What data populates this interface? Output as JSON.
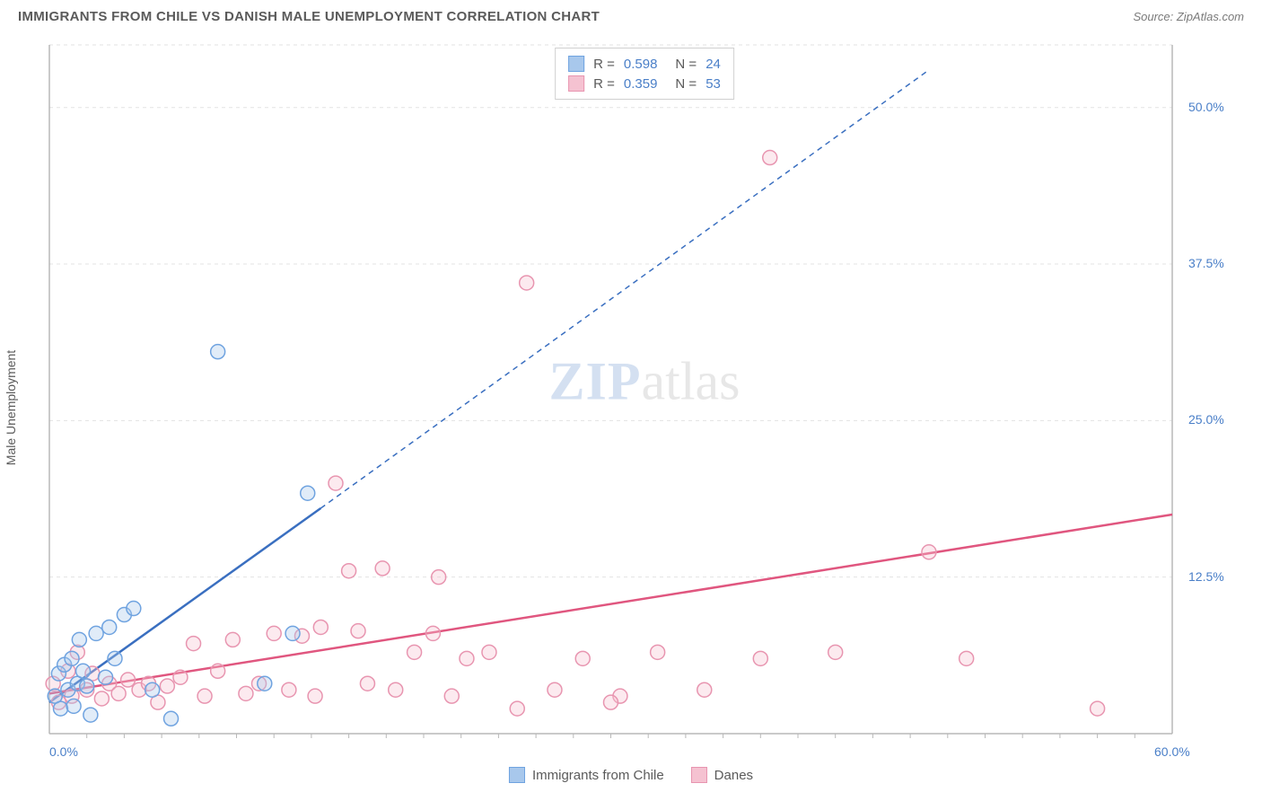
{
  "header": {
    "title": "IMMIGRANTS FROM CHILE VS DANISH MALE UNEMPLOYMENT CORRELATION CHART",
    "source": "Source: ZipAtlas.com"
  },
  "y_axis": {
    "label": "Male Unemployment"
  },
  "watermark": {
    "part1": "ZIP",
    "part2": "atlas"
  },
  "chart": {
    "type": "scatter",
    "xlim": [
      0,
      60
    ],
    "ylim": [
      0,
      55
    ],
    "x_ticks": [
      {
        "v": 0,
        "label": "0.0%"
      },
      {
        "v": 60,
        "label": "60.0%"
      }
    ],
    "y_ticks": [
      {
        "v": 12.5,
        "label": "12.5%"
      },
      {
        "v": 25.0,
        "label": "25.0%"
      },
      {
        "v": 37.5,
        "label": "37.5%"
      },
      {
        "v": 50.0,
        "label": "50.0%"
      }
    ],
    "grid_color": "#e3e3e3",
    "grid_dash": "4,4",
    "axis_color": "#b8b8b8",
    "plot_background": "#ffffff",
    "marker_radius": 8,
    "marker_stroke_width": 1.5,
    "marker_fill_opacity": 0.35,
    "trend_line_width": 2.5,
    "series": [
      {
        "name": "Immigrants from Chile",
        "color_stroke": "#6fa3e0",
        "color_fill": "#a8c8ec",
        "trend_color": "#3a6fc0",
        "r_value": "0.598",
        "n_value": "24",
        "trend_solid": {
          "x1": 0,
          "y1": 2.5,
          "x2": 14.5,
          "y2": 18.0
        },
        "trend_dashed": {
          "x1": 14.5,
          "y1": 18.0,
          "x2": 47,
          "y2": 53.0
        },
        "points": [
          {
            "x": 0.3,
            "y": 3.0
          },
          {
            "x": 0.5,
            "y": 4.8
          },
          {
            "x": 0.6,
            "y": 2.0
          },
          {
            "x": 0.8,
            "y": 5.5
          },
          {
            "x": 1.0,
            "y": 3.5
          },
          {
            "x": 1.2,
            "y": 6.0
          },
          {
            "x": 1.3,
            "y": 2.2
          },
          {
            "x": 1.5,
            "y": 4.0
          },
          {
            "x": 1.6,
            "y": 7.5
          },
          {
            "x": 1.8,
            "y": 5.0
          },
          {
            "x": 2.0,
            "y": 3.8
          },
          {
            "x": 2.2,
            "y": 1.5
          },
          {
            "x": 2.5,
            "y": 8.0
          },
          {
            "x": 3.0,
            "y": 4.5
          },
          {
            "x": 3.2,
            "y": 8.5
          },
          {
            "x": 3.5,
            "y": 6.0
          },
          {
            "x": 4.0,
            "y": 9.5
          },
          {
            "x": 4.5,
            "y": 10.0
          },
          {
            "x": 5.5,
            "y": 3.5
          },
          {
            "x": 6.5,
            "y": 1.2
          },
          {
            "x": 9.0,
            "y": 30.5
          },
          {
            "x": 11.5,
            "y": 4.0
          },
          {
            "x": 13.8,
            "y": 19.2
          },
          {
            "x": 13.0,
            "y": 8.0
          }
        ]
      },
      {
        "name": "Danes",
        "color_stroke": "#e895b0",
        "color_fill": "#f5c2d1",
        "trend_color": "#e0567f",
        "r_value": "0.359",
        "n_value": "53",
        "trend_solid": {
          "x1": 0,
          "y1": 3.2,
          "x2": 60,
          "y2": 17.5
        },
        "trend_dashed": null,
        "points": [
          {
            "x": 0.2,
            "y": 4.0
          },
          {
            "x": 0.5,
            "y": 2.5
          },
          {
            "x": 1.0,
            "y": 5.0
          },
          {
            "x": 1.2,
            "y": 3.0
          },
          {
            "x": 1.5,
            "y": 6.5
          },
          {
            "x": 2.0,
            "y": 3.5
          },
          {
            "x": 2.3,
            "y": 4.8
          },
          {
            "x": 2.8,
            "y": 2.8
          },
          {
            "x": 3.2,
            "y": 4.0
          },
          {
            "x": 3.7,
            "y": 3.2
          },
          {
            "x": 4.2,
            "y": 4.3
          },
          {
            "x": 4.8,
            "y": 3.5
          },
          {
            "x": 5.3,
            "y": 4.0
          },
          {
            "x": 5.8,
            "y": 2.5
          },
          {
            "x": 6.3,
            "y": 3.8
          },
          {
            "x": 7.0,
            "y": 4.5
          },
          {
            "x": 7.7,
            "y": 7.2
          },
          {
            "x": 8.3,
            "y": 3.0
          },
          {
            "x": 9.0,
            "y": 5.0
          },
          {
            "x": 9.8,
            "y": 7.5
          },
          {
            "x": 10.5,
            "y": 3.2
          },
          {
            "x": 11.2,
            "y": 4.0
          },
          {
            "x": 12.0,
            "y": 8.0
          },
          {
            "x": 12.8,
            "y": 3.5
          },
          {
            "x": 13.5,
            "y": 7.8
          },
          {
            "x": 14.2,
            "y": 3.0
          },
          {
            "x": 14.5,
            "y": 8.5
          },
          {
            "x": 15.3,
            "y": 20.0
          },
          {
            "x": 16.0,
            "y": 13.0
          },
          {
            "x": 16.5,
            "y": 8.2
          },
          {
            "x": 17.0,
            "y": 4.0
          },
          {
            "x": 17.8,
            "y": 13.2
          },
          {
            "x": 18.5,
            "y": 3.5
          },
          {
            "x": 19.5,
            "y": 6.5
          },
          {
            "x": 20.5,
            "y": 8.0
          },
          {
            "x": 20.8,
            "y": 12.5
          },
          {
            "x": 21.5,
            "y": 3.0
          },
          {
            "x": 22.3,
            "y": 6.0
          },
          {
            "x": 23.5,
            "y": 6.5
          },
          {
            "x": 25.0,
            "y": 2.0
          },
          {
            "x": 25.5,
            "y": 36.0
          },
          {
            "x": 27.0,
            "y": 3.5
          },
          {
            "x": 28.5,
            "y": 6.0
          },
          {
            "x": 30.5,
            "y": 3.0
          },
          {
            "x": 32.5,
            "y": 6.5
          },
          {
            "x": 35.0,
            "y": 3.5
          },
          {
            "x": 38.0,
            "y": 6.0
          },
          {
            "x": 38.5,
            "y": 46.0
          },
          {
            "x": 42.0,
            "y": 6.5
          },
          {
            "x": 47.0,
            "y": 14.5
          },
          {
            "x": 49.0,
            "y": 6.0
          },
          {
            "x": 56.0,
            "y": 2.0
          },
          {
            "x": 30.0,
            "y": 2.5
          }
        ]
      }
    ]
  },
  "legend_bottom": [
    {
      "label": "Immigrants from Chile",
      "stroke": "#6fa3e0",
      "fill": "#a8c8ec"
    },
    {
      "label": "Danes",
      "stroke": "#e895b0",
      "fill": "#f5c2d1"
    }
  ]
}
